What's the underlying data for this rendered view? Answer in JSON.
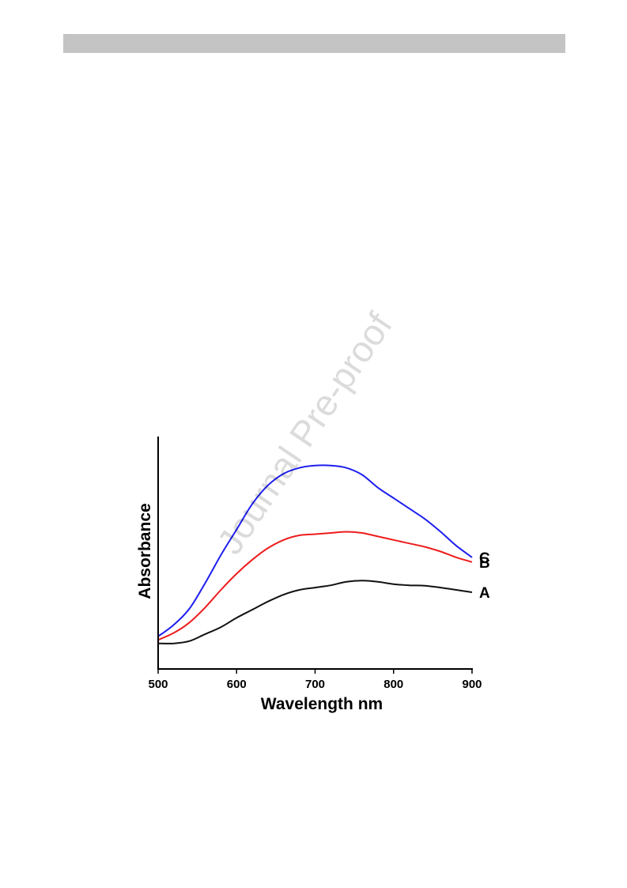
{
  "watermark": "Journal Pre-proof",
  "chart_data": {
    "type": "line",
    "xlabel": "Wavelength nm",
    "ylabel": "Absorbance",
    "xlim": [
      500,
      900
    ],
    "ylim": [
      0,
      1
    ],
    "xticks": [
      500,
      600,
      700,
      800,
      900
    ],
    "y_tick_labels": false,
    "legend": "none",
    "grid": false,
    "colors": {
      "A": "#111111",
      "B": "#ee1c1c",
      "C": "#1e1ef0"
    },
    "series": [
      {
        "name": "A",
        "x": [
          500,
          520,
          540,
          560,
          580,
          600,
          620,
          640,
          660,
          680,
          700,
          720,
          740,
          760,
          780,
          800,
          820,
          840,
          860,
          880,
          900
        ],
        "values": [
          0.11,
          0.11,
          0.12,
          0.15,
          0.18,
          0.22,
          0.255,
          0.29,
          0.32,
          0.34,
          0.35,
          0.36,
          0.375,
          0.38,
          0.375,
          0.365,
          0.36,
          0.358,
          0.35,
          0.34,
          0.33
        ]
      },
      {
        "name": "B",
        "x": [
          500,
          520,
          540,
          560,
          580,
          600,
          620,
          640,
          660,
          680,
          700,
          720,
          740,
          760,
          780,
          800,
          820,
          840,
          860,
          880,
          900
        ],
        "values": [
          0.125,
          0.155,
          0.2,
          0.265,
          0.34,
          0.41,
          0.47,
          0.52,
          0.555,
          0.575,
          0.58,
          0.585,
          0.59,
          0.585,
          0.57,
          0.555,
          0.54,
          0.525,
          0.505,
          0.48,
          0.46
        ]
      },
      {
        "name": "C",
        "x": [
          500,
          520,
          540,
          560,
          580,
          600,
          620,
          640,
          660,
          680,
          700,
          720,
          740,
          760,
          780,
          800,
          820,
          840,
          860,
          880,
          900
        ],
        "values": [
          0.14,
          0.19,
          0.26,
          0.37,
          0.49,
          0.6,
          0.71,
          0.79,
          0.84,
          0.865,
          0.875,
          0.875,
          0.865,
          0.835,
          0.78,
          0.735,
          0.69,
          0.645,
          0.59,
          0.53,
          0.48
        ]
      }
    ]
  }
}
